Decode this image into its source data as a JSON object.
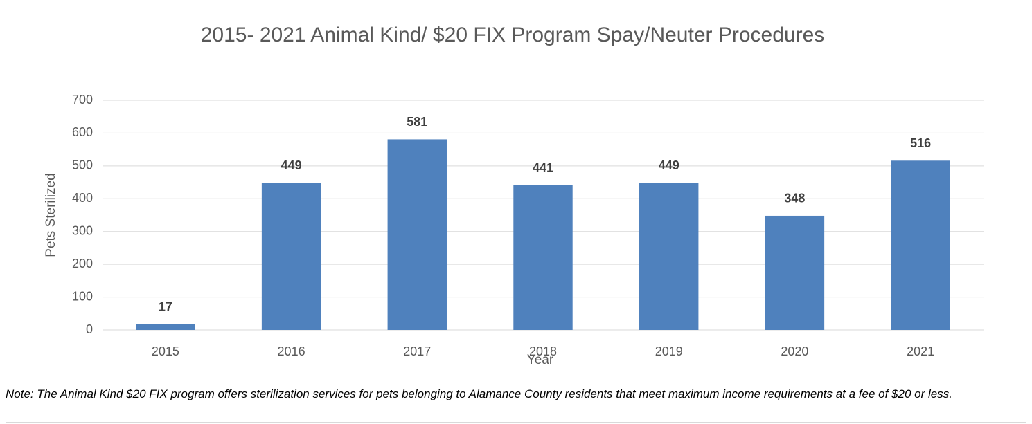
{
  "chart_data": {
    "type": "bar",
    "title": "2015- 2021 Animal Kind/ $20 FIX Program Spay/Neuter Procedures",
    "x_label": "Year",
    "y_label": "Pets Sterilized",
    "categories": [
      "2015",
      "2016",
      "2017",
      "2018",
      "2019",
      "2020",
      "2021"
    ],
    "values": [
      17,
      449,
      581,
      441,
      449,
      348,
      516
    ],
    "color": "#4f81bd",
    "ylim": [
      0,
      700
    ],
    "yticks": [
      0,
      100,
      200,
      300,
      400,
      500,
      600,
      700
    ],
    "grid": true,
    "note": "Note: The  Animal Kind $20 FIX program offers sterilization services for pets belonging to Alamance County residents that meet maximum income requirements at a fee of $20 or less."
  }
}
